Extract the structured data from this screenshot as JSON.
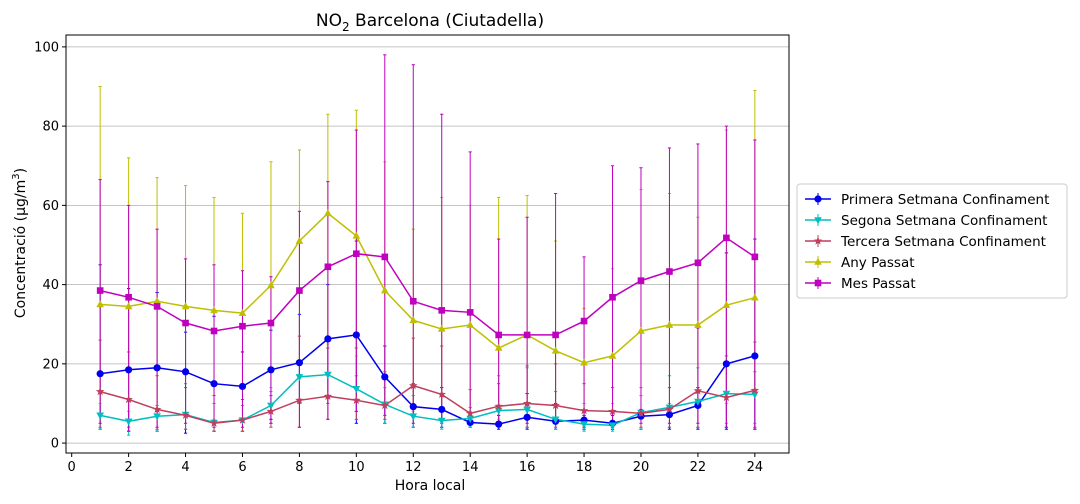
{
  "chart_data": {
    "type": "line",
    "title_main": "NO",
    "title_sub": "2",
    "title_rest": " Barcelona (Ciutadella)",
    "xlabel": "Hora local",
    "ylabel_main": "Concentració (μg/m",
    "ylabel_sup": "3",
    "ylabel_end": ")",
    "xlim": [
      -0.2,
      25.2
    ],
    "ylim": [
      -2.5,
      103
    ],
    "xticks": [
      0,
      2,
      4,
      6,
      8,
      10,
      12,
      14,
      16,
      18,
      20,
      22,
      24
    ],
    "yticks": [
      0,
      20,
      40,
      60,
      80,
      100
    ],
    "grid": "horizontal",
    "legend_position": "right",
    "x": [
      1,
      2,
      3,
      4,
      5,
      6,
      7,
      8,
      9,
      10,
      11,
      12,
      13,
      14,
      15,
      16,
      17,
      18,
      19,
      20,
      21,
      22,
      23,
      24
    ],
    "series": [
      {
        "name": "Primera Setmana Confinament",
        "color": "#0000ee",
        "marker": "circle",
        "values": [
          17.5,
          18.5,
          19,
          18,
          15,
          14.3,
          18.5,
          20.3,
          26.3,
          27.3,
          16.7,
          9.2,
          8.5,
          5.2,
          4.8,
          6.5,
          5.5,
          5.8,
          5,
          6.8,
          7.2,
          9.5,
          20,
          22
        ],
        "upper": [
          45,
          39,
          38,
          28,
          32,
          23,
          28.5,
          32.5,
          40,
          51,
          24.5,
          15,
          14,
          6.5,
          7,
          12.5,
          10,
          7,
          7,
          8.5,
          10,
          14,
          48,
          51.5
        ],
        "lower": [
          3.5,
          3,
          3,
          2.5,
          3,
          3,
          6,
          10,
          10,
          5,
          5,
          4,
          4,
          4,
          3.5,
          3.5,
          3.5,
          3.5,
          3.5,
          3.5,
          3.5,
          3.5,
          3.5,
          3.5
        ]
      },
      {
        "name": "Segona Setmana Confinament",
        "color": "#00bfbf",
        "marker": "triangle-down",
        "values": [
          7,
          5.5,
          6.8,
          7.2,
          5.2,
          5.8,
          9.5,
          16.7,
          17.3,
          13.7,
          9.8,
          6.8,
          5.7,
          6.2,
          8.2,
          8.5,
          6,
          4.8,
          4.5,
          7.7,
          9,
          10.5,
          12.5,
          12.3
        ],
        "upper": [
          13,
          8,
          9.5,
          15,
          10,
          9.5,
          13,
          20,
          24,
          17,
          14,
          12,
          9,
          9,
          17,
          19,
          13,
          10,
          8,
          14,
          17,
          19,
          20,
          18
        ],
        "lower": [
          3.5,
          2,
          3,
          3.5,
          3,
          3,
          5,
          10,
          10,
          8,
          5,
          4,
          3.5,
          4,
          4,
          4,
          3.5,
          3,
          3,
          3.5,
          4,
          4,
          5,
          5
        ]
      },
      {
        "name": "Tercera Setmana Confinament",
        "color": "#bf3f5f",
        "marker": "star",
        "values": [
          13,
          11,
          8.5,
          7,
          5,
          5.8,
          8,
          10.8,
          11.8,
          10.8,
          9.5,
          14.5,
          12.3,
          7.5,
          9.3,
          10,
          9.5,
          8.2,
          8,
          7.5,
          8.5,
          13.2,
          11.5,
          13.3
        ],
        "upper": [
          26,
          23,
          17,
          14,
          12,
          11,
          12,
          27,
          24,
          24,
          18,
          26.5,
          24.5,
          13.5,
          15,
          19.5,
          20,
          15,
          14,
          12,
          14,
          29,
          22,
          25.5
        ],
        "lower": [
          4,
          4,
          3.5,
          3.5,
          3,
          3,
          4,
          4,
          6,
          6,
          6,
          7,
          6,
          5,
          4,
          4,
          4,
          4,
          4,
          4,
          4,
          4,
          4,
          4
        ]
      },
      {
        "name": "Any Passat",
        "color": "#bfbf00",
        "marker": "triangle-up",
        "values": [
          35,
          34.5,
          35.8,
          34.5,
          33.5,
          32.8,
          39.8,
          51,
          58,
          52.3,
          38.5,
          31,
          28.8,
          29.8,
          24,
          27.3,
          23.3,
          20.3,
          22,
          28.3,
          29.8,
          29.8,
          34.8,
          36.7
        ],
        "upper": [
          90,
          72,
          67,
          65,
          62,
          58,
          71,
          74,
          83,
          84,
          71,
          54,
          62,
          60,
          62,
          62.5,
          51,
          34,
          44,
          64,
          63,
          57,
          79,
          89
        ],
        "lower": [
          10,
          8,
          8,
          7,
          6,
          6,
          14,
          20,
          25,
          22,
          10,
          8,
          8,
          8,
          6,
          8,
          6,
          10,
          10,
          12,
          10,
          10,
          10,
          12
        ]
      },
      {
        "name": "Mes Passat",
        "color": "#bf00bf",
        "marker": "square",
        "values": [
          38.5,
          36.8,
          34.5,
          30.3,
          28.3,
          29.5,
          30.3,
          38.5,
          44.5,
          47.8,
          47,
          35.8,
          33.5,
          33,
          27.3,
          27.3,
          27.3,
          30.8,
          36.8,
          41,
          43.3,
          45.5,
          51.8,
          47
        ],
        "upper": [
          66.5,
          60,
          54,
          46.5,
          45,
          43.5,
          42,
          58.5,
          66,
          79,
          98,
          95.5,
          83,
          73.5,
          51.5,
          57,
          63,
          47,
          70,
          69.5,
          74.5,
          75.5,
          80,
          76.5
        ],
        "lower": [
          5,
          3,
          4,
          5,
          4,
          4,
          5,
          4,
          6,
          8,
          7,
          5,
          5,
          5,
          5,
          5,
          5,
          4,
          4,
          5,
          5,
          5,
          4,
          3.5
        ]
      }
    ]
  }
}
